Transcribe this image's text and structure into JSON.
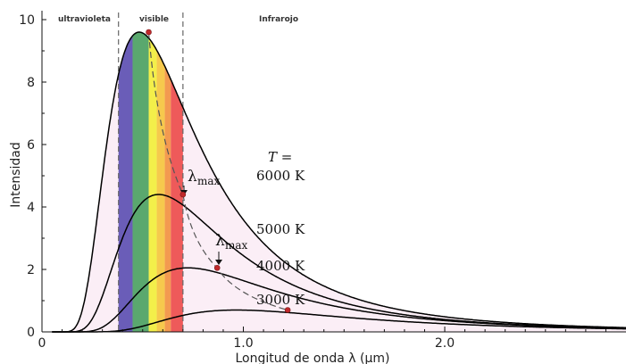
{
  "chart_data": {
    "type": "line",
    "title": "",
    "xlabel": "Longitud de onda λ (μm)",
    "ylabel": "Intensidad",
    "xlim": [
      0,
      2.9
    ],
    "ylim": [
      0,
      10
    ],
    "x_ticks": [
      "0",
      "1.0",
      "2.0"
    ],
    "y_ticks": [
      "0",
      "2",
      "4",
      "6",
      "8",
      "10"
    ],
    "region_labels": {
      "uv": "ultravioleta",
      "visible": "visible",
      "ir": "Infrarojo"
    },
    "region_bounds_um": [
      0.38,
      0.7
    ],
    "temperature_label": "T =",
    "lambda_max_label": "λ",
    "lambda_max_subscript": "max",
    "spectrum_bands": [
      {
        "from": 0.38,
        "to": 0.45,
        "color": "#6a5db8"
      },
      {
        "from": 0.45,
        "to": 0.53,
        "color": "#5aa86e"
      },
      {
        "from": 0.53,
        "to": 0.57,
        "color": "#f3ef4a"
      },
      {
        "from": 0.57,
        "to": 0.61,
        "color": "#f6c94d"
      },
      {
        "from": 0.61,
        "to": 0.64,
        "color": "#f39a50"
      },
      {
        "from": 0.64,
        "to": 0.7,
        "color": "#ee5a5a"
      }
    ],
    "series": [
      {
        "name": "6000 K",
        "temperature_K": 6000,
        "peak_x": 0.53,
        "peak_y": 9.6
      },
      {
        "name": "5000 K",
        "temperature_K": 5000,
        "peak_x": 0.7,
        "peak_y": 4.4
      },
      {
        "name": "4000 K",
        "temperature_K": 4000,
        "peak_x": 0.87,
        "peak_y": 2.05
      },
      {
        "name": "3000 K",
        "temperature_K": 3000,
        "peak_x": 1.22,
        "peak_y": 0.7
      }
    ],
    "wien_locus_color": "#555555",
    "fill_color": "#fbeef6",
    "curve_color": "#000000",
    "peak_marker_color": "#c0282b",
    "grid": false,
    "legend": "none"
  }
}
